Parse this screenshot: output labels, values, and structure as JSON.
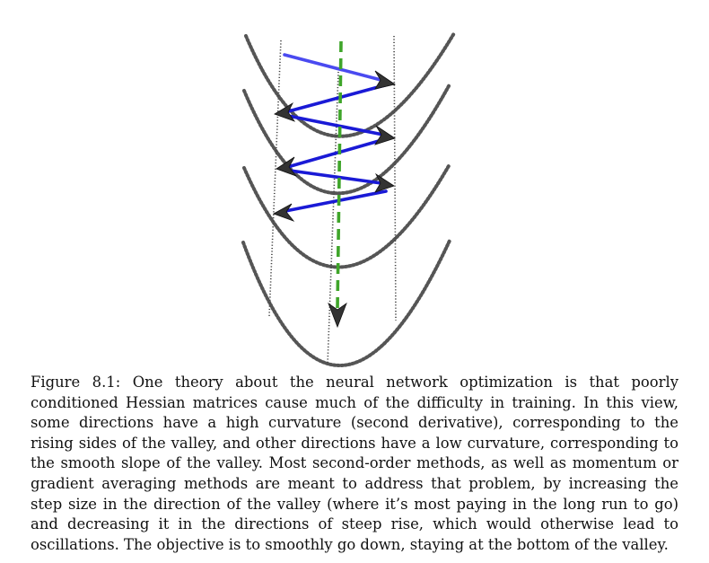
{
  "caption": {
    "label": "Figure 8.1:",
    "text": "One theory about the neural network optimization is that poorly conditioned Hessian matrices cause much of the difficulty in training. In this view, some directions have a high curvature (second derivative), corresponding to the rising sides of the valley, and other directions have a low curvature, corresponding to the smooth slope of the valley. Most second-order methods, as well as momentum or gradient averaging methods are meant to address that problem, by increasing the step size in the direction of the valley (where it’s most paying in the long run to go) and decreasing it in the directions of steep rise, which would otherwise lead to oscillations. The objective is to smoothly go down, staying at the bottom of the valley."
  },
  "colors": {
    "zigzag": "#1a1ad6",
    "zigzag_start": "#4a4af0",
    "descent": "#3fa52a",
    "contour": "#555555",
    "arrowhead": "#333333"
  }
}
